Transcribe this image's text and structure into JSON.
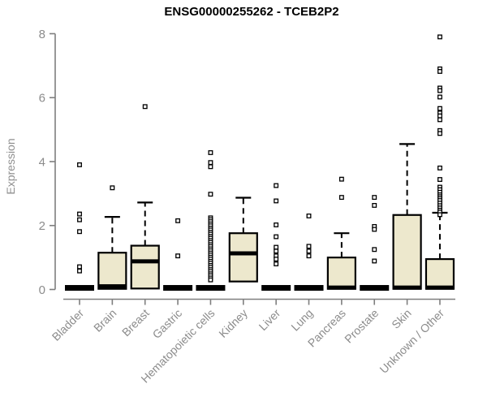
{
  "style": {
    "box_fill": "#EDE8CD",
    "box_stroke": "#000000",
    "axis_color": "#7f7f7f",
    "tick_label_color": "#8c8c8c",
    "title_color": "#000000",
    "background": "#ffffff"
  },
  "chart_data": {
    "type": "boxplot",
    "title": "ENSG00000255262 - TCEB2P2",
    "xlabel": "",
    "ylabel": "Expression",
    "ylim": [
      0,
      8
    ],
    "yticks": [
      0,
      2,
      4,
      6,
      8
    ],
    "grid": false,
    "legend": false,
    "categories": [
      "Bladder",
      "Brain",
      "Breast",
      "Gastric",
      "Hematopoietic cells",
      "Kidney",
      "Liver",
      "Lung",
      "Pancreas",
      "Prostate",
      "Skin",
      "Unknown / Other"
    ],
    "series": [
      {
        "category": "Bladder",
        "collapsed": true,
        "q1": 0,
        "median": 0.05,
        "q3": 0.1,
        "whisker_low": 0,
        "whisker_high": 0.1,
        "outliers": [
          3.9,
          2.36,
          2.18,
          1.81,
          0.71,
          0.58
        ]
      },
      {
        "category": "Brain",
        "collapsed": false,
        "q1": 0.02,
        "median": 0.1,
        "q3": 1.15,
        "whisker_low": 0.02,
        "whisker_high": 2.27,
        "outliers": [
          3.18
        ]
      },
      {
        "category": "Breast",
        "collapsed": false,
        "q1": 0.03,
        "median": 0.88,
        "q3": 1.37,
        "whisker_low": 0.03,
        "whisker_high": 2.72,
        "outliers": [
          5.72
        ]
      },
      {
        "category": "Gastric",
        "collapsed": true,
        "q1": 0,
        "median": 0.05,
        "q3": 0.1,
        "whisker_low": 0,
        "whisker_high": 0.1,
        "outliers": [
          2.15,
          1.05
        ]
      },
      {
        "category": "Hematopoietic cells",
        "collapsed": true,
        "q1": 0,
        "median": 0.05,
        "q3": 0.1,
        "whisker_low": 0,
        "whisker_high": 0.1,
        "outliers": [
          4.28,
          3.97,
          3.84,
          2.98,
          2.24,
          2.18,
          2.12,
          2.05,
          1.99,
          1.92,
          1.86,
          1.79,
          1.73,
          1.66,
          1.6,
          1.53,
          1.47,
          1.4,
          1.34,
          1.27,
          1.21,
          1.14,
          1.08,
          1.01,
          0.95,
          0.88,
          0.82,
          0.75,
          0.69,
          0.62,
          0.56,
          0.49,
          0.43,
          0.36,
          0.3
        ]
      },
      {
        "category": "Kidney",
        "collapsed": false,
        "q1": 0.25,
        "median": 1.13,
        "q3": 1.76,
        "whisker_low": 0.25,
        "whisker_high": 2.87,
        "outliers": []
      },
      {
        "category": "Liver",
        "collapsed": true,
        "q1": 0,
        "median": 0.05,
        "q3": 0.1,
        "whisker_low": 0,
        "whisker_high": 0.1,
        "outliers": [
          3.25,
          2.77,
          2.02,
          1.65,
          1.32,
          1.2,
          1.05,
          0.95,
          0.8
        ]
      },
      {
        "category": "Lung",
        "collapsed": true,
        "q1": 0,
        "median": 0.05,
        "q3": 0.1,
        "whisker_low": 0,
        "whisker_high": 0.1,
        "outliers": [
          2.3,
          1.35,
          1.2,
          1.05
        ]
      },
      {
        "category": "Pancreas",
        "collapsed": false,
        "q1": 0.02,
        "median": 0.06,
        "q3": 1.0,
        "whisker_low": 0.02,
        "whisker_high": 1.76,
        "outliers": [
          3.45,
          2.88
        ]
      },
      {
        "category": "Prostate",
        "collapsed": true,
        "q1": 0,
        "median": 0.05,
        "q3": 0.1,
        "whisker_low": 0,
        "whisker_high": 0.1,
        "outliers": [
          2.88,
          2.63,
          1.97,
          1.88,
          1.25,
          0.89
        ]
      },
      {
        "category": "Skin",
        "collapsed": false,
        "q1": 0.02,
        "median": 0.06,
        "q3": 2.33,
        "whisker_low": 0.02,
        "whisker_high": 4.55,
        "outliers": []
      },
      {
        "category": "Unknown / Other",
        "collapsed": false,
        "q1": 0.02,
        "median": 0.06,
        "q3": 0.95,
        "whisker_low": 0.02,
        "whisker_high": 2.4,
        "outliers": [
          7.9,
          6.9,
          6.82,
          6.3,
          6.22,
          6.02,
          5.66,
          5.52,
          5.43,
          5.31,
          4.97,
          4.88,
          3.8,
          3.44,
          3.2,
          3.12,
          3.04,
          2.96,
          2.9,
          2.84,
          2.78,
          2.7,
          2.62,
          2.55,
          2.48,
          2.42,
          2.34
        ]
      }
    ]
  }
}
